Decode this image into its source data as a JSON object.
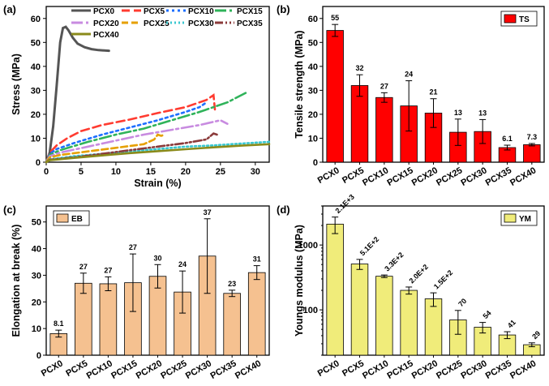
{
  "chart_data": [
    {
      "panel": "(a)",
      "type": "line",
      "xlabel": "Strain (%)",
      "ylabel": "Stress (MPa)",
      "xlim": [
        0,
        32
      ],
      "ylim": [
        0,
        65
      ],
      "xticks": [
        "0",
        "5",
        "10",
        "15",
        "20",
        "25",
        "30"
      ],
      "yticks": [
        "0",
        "10",
        "20",
        "30",
        "40",
        "50",
        "60"
      ],
      "series": [
        {
          "name": "PCX0",
          "color": "#555555",
          "dash": "solid",
          "points": [
            [
              0,
              0
            ],
            [
              0.5,
              4
            ],
            [
              1,
              15
            ],
            [
              1.5,
              32
            ],
            [
              2,
              50
            ],
            [
              2.4,
              56
            ],
            [
              2.8,
              56.5
            ],
            [
              3.2,
              55
            ],
            [
              3.8,
              52
            ],
            [
              4.5,
              49.5
            ],
            [
              5.5,
              48
            ],
            [
              6.5,
              47.2
            ],
            [
              7.5,
              46.8
            ],
            [
              9,
              46.5
            ]
          ]
        },
        {
          "name": "PCX5",
          "color": "#ff3b30",
          "dash": "10,5",
          "points": [
            [
              0,
              0
            ],
            [
              0.5,
              4
            ],
            [
              1.5,
              7
            ],
            [
              3,
              10
            ],
            [
              5,
              13
            ],
            [
              8,
              15.5
            ],
            [
              12,
              17.8
            ],
            [
              16,
              20.5
            ],
            [
              20,
              23
            ],
            [
              23,
              26
            ],
            [
              24,
              28
            ],
            [
              24.2,
              22
            ]
          ]
        },
        {
          "name": "PCX10",
          "color": "#1e6fff",
          "dash": "3,4",
          "points": [
            [
              0,
              0
            ],
            [
              0.5,
              3.5
            ],
            [
              1.5,
              5.5
            ],
            [
              4,
              8
            ],
            [
              8,
              11.5
            ],
            [
              12,
              14.5
            ],
            [
              16,
              17.5
            ],
            [
              20,
              21
            ],
            [
              22,
              23
            ],
            [
              23,
              25
            ]
          ]
        },
        {
          "name": "PCX15",
          "color": "#2fb35a",
          "dash": "14,4,3,4",
          "points": [
            [
              0,
              0
            ],
            [
              0.5,
              3
            ],
            [
              2,
              5
            ],
            [
              6,
              8.5
            ],
            [
              10,
              11.5
            ],
            [
              14,
              14
            ],
            [
              18,
              17.5
            ],
            [
              22,
              21
            ],
            [
              26,
              25
            ],
            [
              29,
              29.5
            ]
          ]
        },
        {
          "name": "PCX20",
          "color": "#c88be0",
          "dash": "14,4,3,4",
          "points": [
            [
              0,
              0
            ],
            [
              0.5,
              2.5
            ],
            [
              2,
              4
            ],
            [
              6,
              6.5
            ],
            [
              10,
              9
            ],
            [
              14,
              11.5
            ],
            [
              18,
              13.5
            ],
            [
              22,
              15.5
            ],
            [
              25,
              17.5
            ],
            [
              26,
              16
            ]
          ]
        },
        {
          "name": "PCX25",
          "color": "#e6a000",
          "dash": "8,4",
          "points": [
            [
              0,
              0
            ],
            [
              0.5,
              2
            ],
            [
              2,
              3
            ],
            [
              6,
              4.5
            ],
            [
              10,
              6
            ],
            [
              14,
              7.5
            ],
            [
              15.5,
              9.5
            ],
            [
              16,
              11.5
            ],
            [
              16.5,
              11
            ],
            [
              17,
              11.5
            ]
          ]
        },
        {
          "name": "PCX30",
          "color": "#39c7d0",
          "dash": "2,3",
          "points": [
            [
              0,
              0
            ],
            [
              0.5,
              1.2
            ],
            [
              4,
              2.5
            ],
            [
              8,
              3.5
            ],
            [
              12,
              4.5
            ],
            [
              16,
              5.5
            ],
            [
              20,
              6.5
            ],
            [
              24,
              7
            ],
            [
              28,
              7.8
            ],
            [
              32,
              8.5
            ]
          ]
        },
        {
          "name": "PCX35",
          "color": "#8b3a3a",
          "dash": "10,3,2,3,2,3",
          "points": [
            [
              0,
              0
            ],
            [
              0.5,
              1
            ],
            [
              4,
              2
            ],
            [
              8,
              3.5
            ],
            [
              12,
              5
            ],
            [
              16,
              6.5
            ],
            [
              20,
              8
            ],
            [
              23,
              9.5
            ],
            [
              24,
              12
            ],
            [
              24.5,
              11.5
            ]
          ]
        },
        {
          "name": "PCX40",
          "color": "#8a8a1a",
          "dash": "solid",
          "points": [
            [
              0,
              0
            ],
            [
              0.5,
              0.8
            ],
            [
              4,
              1.8
            ],
            [
              8,
              2.8
            ],
            [
              12,
              3.8
            ],
            [
              16,
              4.6
            ],
            [
              20,
              5.4
            ],
            [
              24,
              6.2
            ],
            [
              28,
              6.9
            ],
            [
              32,
              7.5
            ]
          ]
        }
      ]
    },
    {
      "panel": "(b)",
      "type": "bar",
      "ylabel": "Tensile strength (MPa)",
      "legend": "TS",
      "color": "#ff0000",
      "ylim": [
        0,
        65
      ],
      "yticks": [
        "0",
        "10",
        "20",
        "30",
        "40",
        "50",
        "60"
      ],
      "categories": [
        "PCX0",
        "PCX5",
        "PCX10",
        "PCX15",
        "PCX20",
        "PCX25",
        "PCX30",
        "PCX35",
        "PCX40"
      ],
      "values": [
        55,
        32,
        27,
        23.5,
        20.5,
        12.5,
        12.8,
        6.1,
        7.3
      ],
      "errors": [
        2.5,
        4.5,
        2,
        10.5,
        6,
        5.5,
        5,
        1,
        0.5
      ],
      "labels": [
        "55",
        "32",
        "27",
        "24",
        "21",
        "13",
        "13",
        "6.1",
        "7.3"
      ]
    },
    {
      "panel": "(c)",
      "type": "bar",
      "ylabel": "Elongation at break (%)",
      "legend": "EB",
      "color": "#f5c190",
      "ylim": [
        0,
        56
      ],
      "yticks": [
        "0",
        "10",
        "20",
        "30",
        "40",
        "50"
      ],
      "categories": [
        "PCX0",
        "PCX5",
        "PCX10",
        "PCX15",
        "PCX20",
        "PCX25",
        "PCX30",
        "PCX35",
        "PCX40"
      ],
      "values": [
        8.1,
        27,
        26.8,
        27.2,
        29.6,
        23.7,
        37.2,
        23.2,
        31
      ],
      "errors": [
        1.3,
        3.8,
        2.6,
        10.8,
        4.4,
        7.9,
        14,
        1.2,
        2.6
      ],
      "labels": [
        "8.1",
        "27",
        "27",
        "27",
        "30",
        "24",
        "37",
        "23",
        "31"
      ]
    },
    {
      "panel": "(d)",
      "type": "bar",
      "ylabel": "Youngs modulus (MPa)",
      "legend": "YM",
      "color": "#f0ec7a",
      "yscale": "log",
      "ylim": [
        20,
        4000
      ],
      "yticks": [
        "100",
        "1000"
      ],
      "categories": [
        "PCX0",
        "PCX5",
        "PCX10",
        "PCX15",
        "PCX20",
        "PCX25",
        "PCX30",
        "PCX35",
        "PCX40"
      ],
      "values": [
        2100,
        510,
        330,
        200,
        148,
        70,
        54,
        41,
        29
      ],
      "errors": [
        600,
        90,
        15,
        25,
        35,
        28,
        10,
        5,
        2
      ],
      "labels": [
        "2.1E+3",
        "5.1E+2",
        "3.3E+2",
        "2.0E+2",
        "1.5E+2",
        "70",
        "54",
        "41",
        "29"
      ]
    }
  ]
}
